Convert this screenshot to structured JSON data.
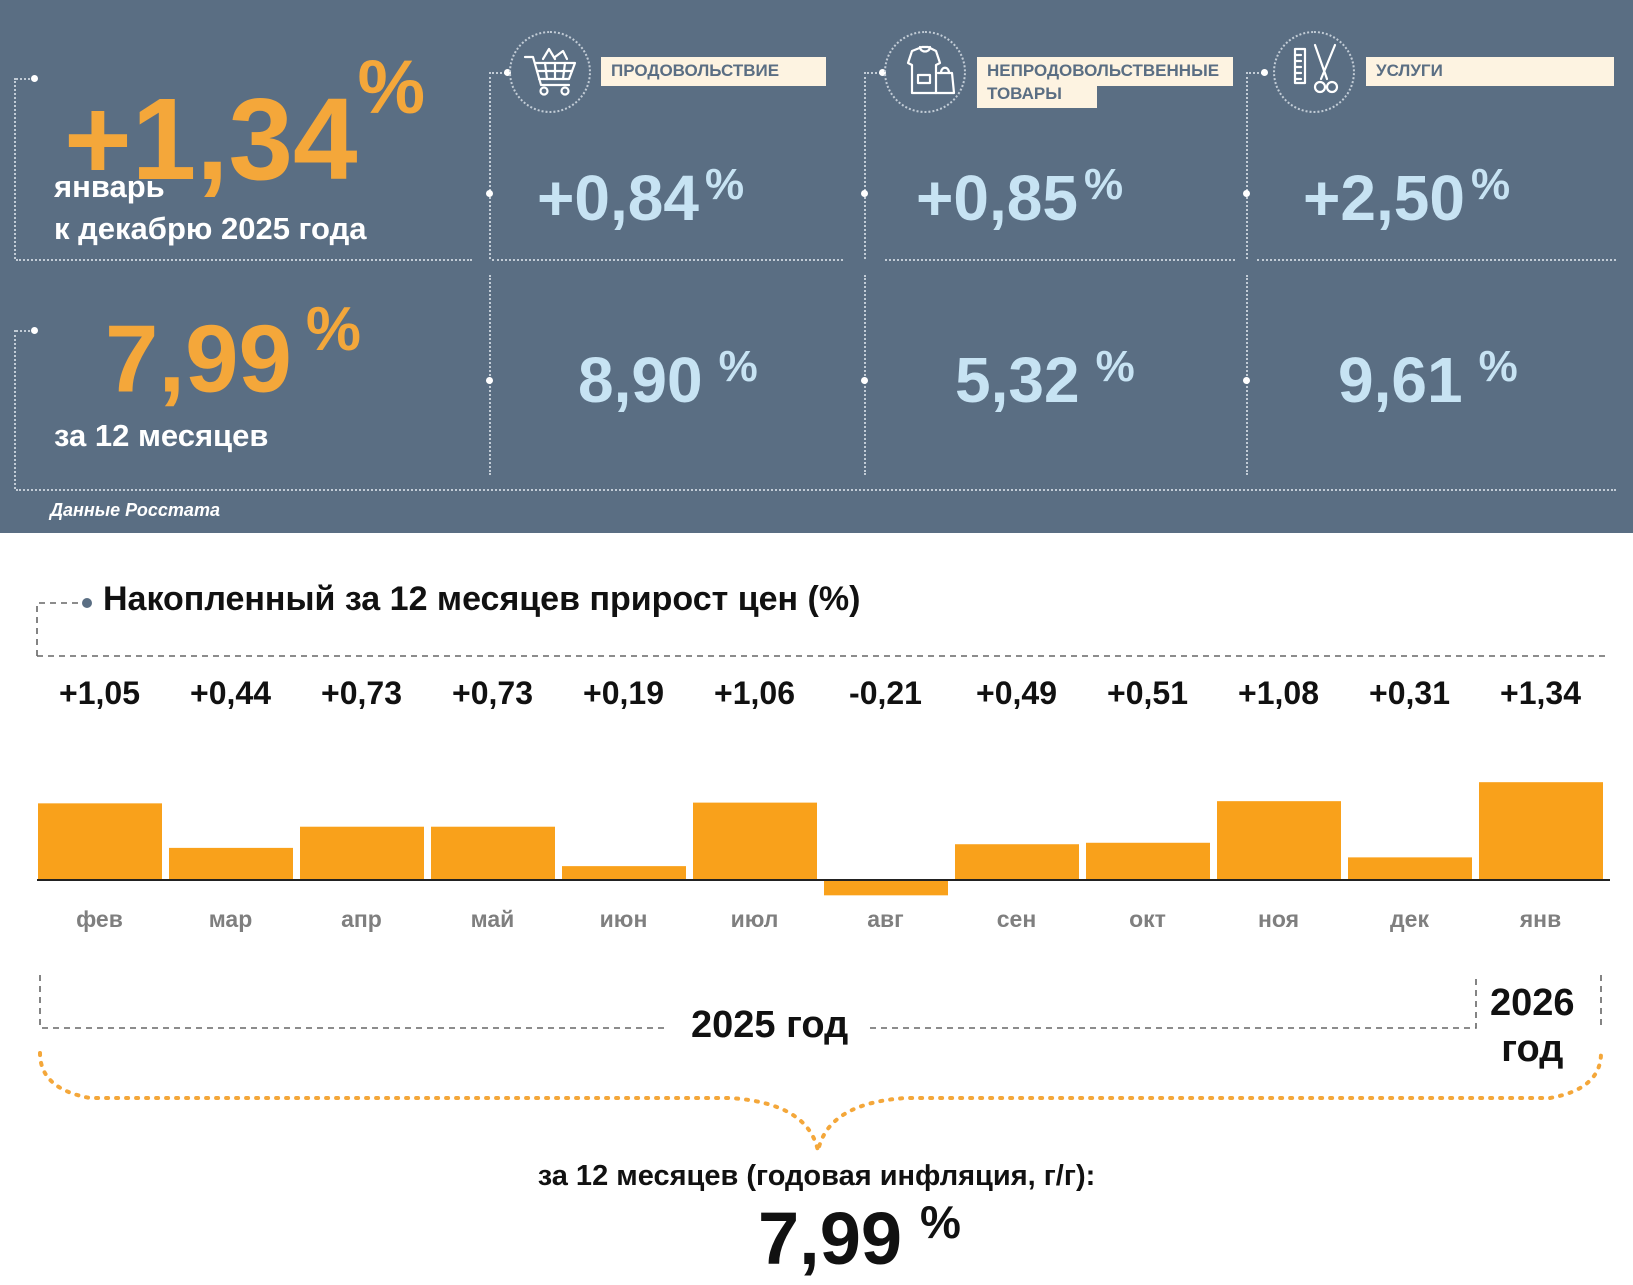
{
  "header": {
    "main_value": "+1,34",
    "main_percent": "%",
    "main_period_line1": "январь",
    "main_period_line2": "к декабрю 2025 года",
    "annual_value": "7,99",
    "annual_percent": "%",
    "annual_period": "за 12 месяцев",
    "source": "Данные Росстата"
  },
  "categories": [
    {
      "label": "ПРОДОВОЛЬСТВИЕ",
      "monthly": "+0,84",
      "annual": "8,90",
      "icon": "shopping-cart-icon"
    },
    {
      "label_line1": "НЕПРОДОВОЛЬСТВЕННЫЕ",
      "label_line2": "ТОВАРЫ",
      "monthly": "+0,85",
      "annual": "5,32",
      "icon": "clothes-bag-icon"
    },
    {
      "label": "УСЛУГИ",
      "monthly": "+2,50",
      "annual": "9,61",
      "icon": "comb-scissors-icon"
    }
  ],
  "percent_sign": "%",
  "chart_data": {
    "type": "bar",
    "title": "Накопленный за 12 месяцев прирост цен (%)",
    "categories": [
      "фев",
      "мар",
      "апр",
      "май",
      "июн",
      "июл",
      "авг",
      "сен",
      "окт",
      "ноя",
      "дек",
      "янв"
    ],
    "value_labels": [
      "+1,05",
      "+0,44",
      "+0,73",
      "+0,73",
      "+0,19",
      "+1,06",
      "-0,21",
      "+0,49",
      "+0,51",
      "+1,08",
      "+0,31",
      "+1,34"
    ],
    "values": [
      1.05,
      0.44,
      0.73,
      0.73,
      0.19,
      1.06,
      -0.21,
      0.49,
      0.51,
      1.08,
      0.31,
      1.34
    ],
    "bar_color": "#f9a11b",
    "year_2025": "2025 год",
    "year_2026_line1": "2026",
    "year_2026_line2": "год",
    "summary_label": "за 12 месяцев (годовая инфляция, г/г):",
    "summary_value": "7,99",
    "summary_percent": "%"
  }
}
